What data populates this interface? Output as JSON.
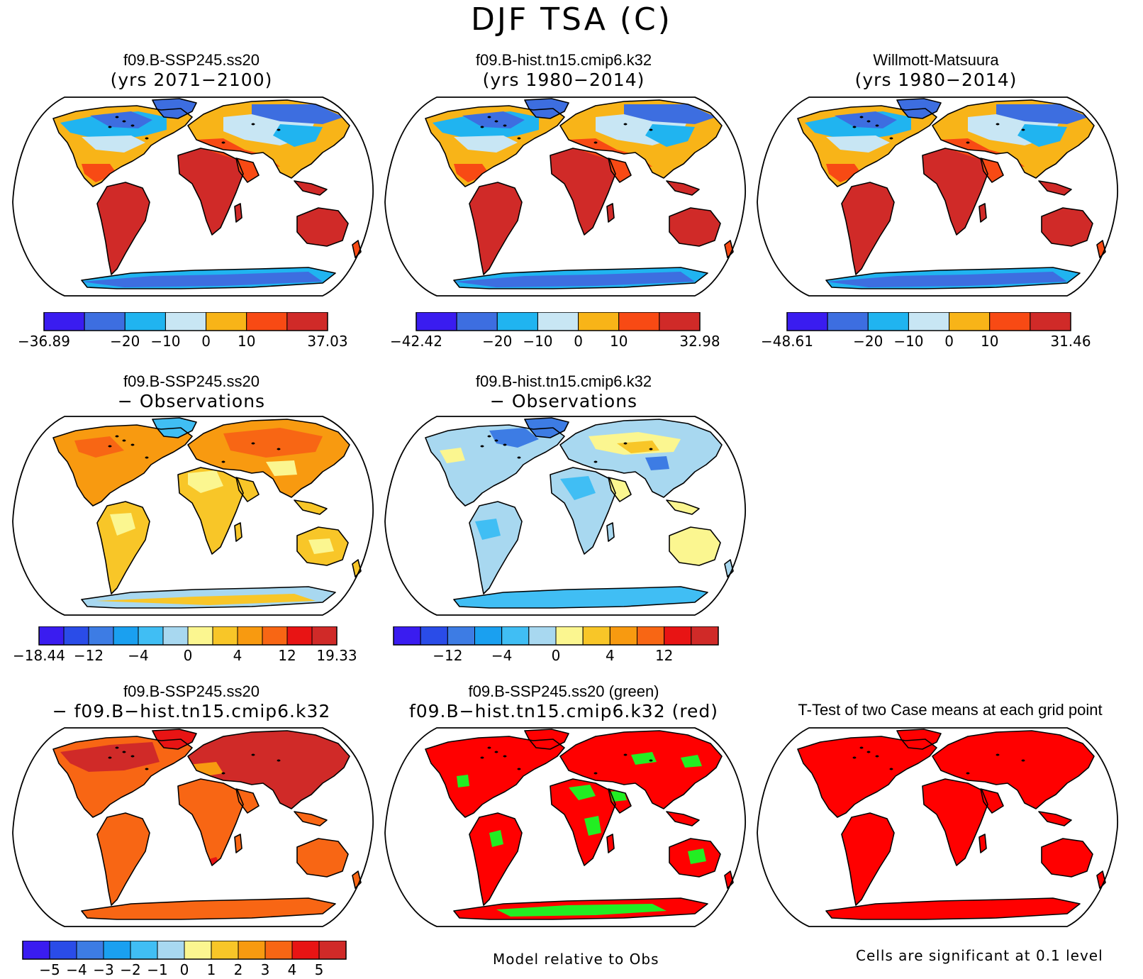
{
  "figure_title": "DJF TSA (C)",
  "panels": [
    {
      "id": "p1",
      "title": "f09.B-SSP245.ss20",
      "subtitle": "(yrs 2071−2100)",
      "scheme": "abs"
    },
    {
      "id": "p2",
      "title": "f09.B-hist.tn15.cmip6.k32",
      "subtitle": "(yrs 1980−2014)",
      "scheme": "abs"
    },
    {
      "id": "p3",
      "title": "Willmott-Matsuura",
      "subtitle": "(yrs 1980−2014)",
      "scheme": "abs"
    },
    {
      "id": "p4",
      "title": "f09.B-SSP245.ss20",
      "subtitle": "− Observations",
      "scheme": "diff_warm"
    },
    {
      "id": "p5",
      "title": "f09.B-hist.tn15.cmip6.k32",
      "subtitle": "− Observations",
      "scheme": "diff_cool"
    },
    {
      "id": "p6",
      "title": "f09.B-SSP245.ss20",
      "subtitle": "− f09.B−hist.tn15.cmip6.k32",
      "scheme": "case_diff"
    },
    {
      "id": "p7",
      "title": "f09.B-SSP245.ss20 (green)",
      "subtitle": "f09.B−hist.tn15.cmip6.k32 (red)",
      "scheme": "green_red"
    },
    {
      "id": "p8",
      "title": "T-Test of two Case means at each grid point",
      "subtitle": "",
      "scheme": "ttest"
    }
  ],
  "colorbars": [
    {
      "id": "cb1",
      "colors": [
        "#3a1cf0",
        "#3d6ee0",
        "#20b4f0",
        "#c8e6f4",
        "#f8b418",
        "#f84a14",
        "#d02a28"
      ],
      "labels": [
        {
          "b": 0,
          "t": "−36.89"
        },
        {
          "b": 2,
          "t": "−20"
        },
        {
          "b": 3,
          "t": "−10"
        },
        {
          "b": 4,
          "t": "0"
        },
        {
          "b": 5,
          "t": "10"
        },
        {
          "b": 7,
          "t": "37.03"
        }
      ]
    },
    {
      "id": "cb2",
      "colors": [
        "#3a1cf0",
        "#3d6ee0",
        "#20b4f0",
        "#c8e6f4",
        "#f8b418",
        "#f84a14",
        "#d02a28"
      ],
      "labels": [
        {
          "b": 0,
          "t": "−42.42"
        },
        {
          "b": 2,
          "t": "−20"
        },
        {
          "b": 3,
          "t": "−10"
        },
        {
          "b": 4,
          "t": "0"
        },
        {
          "b": 5,
          "t": "10"
        },
        {
          "b": 7,
          "t": "32.98"
        }
      ]
    },
    {
      "id": "cb3",
      "colors": [
        "#3a1cf0",
        "#3d6ee0",
        "#20b4f0",
        "#c8e6f4",
        "#f8b418",
        "#f84a14",
        "#d02a28"
      ],
      "labels": [
        {
          "b": 0,
          "t": "−48.61"
        },
        {
          "b": 2,
          "t": "−20"
        },
        {
          "b": 3,
          "t": "−10"
        },
        {
          "b": 4,
          "t": "0"
        },
        {
          "b": 5,
          "t": "10"
        },
        {
          "b": 7,
          "t": "31.46"
        }
      ]
    },
    {
      "id": "cb4",
      "colors": [
        "#3a1cf0",
        "#2a4ce8",
        "#3d7ce4",
        "#1aa0f0",
        "#40bef4",
        "#a8d8f0",
        "#fbf690",
        "#f8c628",
        "#f89a10",
        "#f86614",
        "#e81414",
        "#d02a28"
      ],
      "labels": [
        {
          "b": 0,
          "t": "−18.44"
        },
        {
          "b": 2,
          "t": "−12"
        },
        {
          "b": 4,
          "t": "−4"
        },
        {
          "b": 6,
          "t": "0"
        },
        {
          "b": 8,
          "t": "4"
        },
        {
          "b": 10,
          "t": "12"
        },
        {
          "b": 12,
          "t": "19.33"
        }
      ]
    },
    {
      "id": "cb5",
      "colors": [
        "#3a1cf0",
        "#2a4ce8",
        "#3d7ce4",
        "#1aa0f0",
        "#40bef4",
        "#a8d8f0",
        "#fbf690",
        "#f8c628",
        "#f89a10",
        "#f86614",
        "#e81414",
        "#d02a28"
      ],
      "labels": [
        {
          "b": 2,
          "t": "−12"
        },
        {
          "b": 4,
          "t": "−4"
        },
        {
          "b": 6,
          "t": "0"
        },
        {
          "b": 8,
          "t": "4"
        },
        {
          "b": 10,
          "t": "12"
        }
      ]
    },
    {
      "id": "cb6",
      "colors": [
        "#3a1cf0",
        "#2a4ce8",
        "#3d7ce4",
        "#1aa0f0",
        "#40bef4",
        "#a8d8f0",
        "#fbf690",
        "#f8c628",
        "#f89a10",
        "#f86614",
        "#e81414",
        "#d02a28"
      ],
      "labels": [
        {
          "b": 1,
          "t": "−5"
        },
        {
          "b": 2,
          "t": "−4"
        },
        {
          "b": 3,
          "t": "−3"
        },
        {
          "b": 4,
          "t": "−2"
        },
        {
          "b": 5,
          "t": "−1"
        },
        {
          "b": 6,
          "t": "0"
        },
        {
          "b": 7,
          "t": "1"
        },
        {
          "b": 8,
          "t": "2"
        },
        {
          "b": 9,
          "t": "3"
        },
        {
          "b": 10,
          "t": "4"
        },
        {
          "b": 11,
          "t": "5"
        }
      ]
    }
  ],
  "footer": {
    "model_relative": "Model relative to Obs",
    "significance": "Cells are significant at 0.1 level"
  }
}
